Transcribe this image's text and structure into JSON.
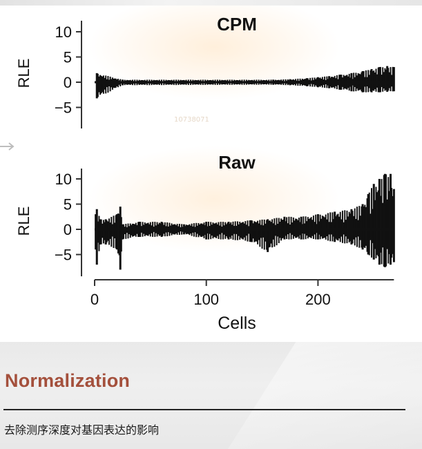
{
  "figure": {
    "watermark": "10738071",
    "chart_data": [
      {
        "type": "bar",
        "title": "CPM",
        "ylabel": "RLE",
        "xlabel": "",
        "ylim": [
          -8.5,
          12
        ],
        "yticks": [
          10,
          5,
          0,
          -5
        ],
        "xlim": [
          -5,
          270
        ],
        "series": [
          {
            "x": [
              2,
              25,
              160,
              175,
              190,
              200,
              210,
              220,
              230,
              240,
              248,
              255,
              262,
              268
            ],
            "high": [
              1.8,
              0.5,
              0.5,
              0.6,
              0.8,
              1.0,
              1.2,
              1.5,
              1.8,
              2.2,
              2.6,
              3.0,
              3.2,
              3.0
            ],
            "low": [
              -3.2,
              -0.6,
              -0.5,
              -0.6,
              -0.8,
              -1.0,
              -1.2,
              -1.5,
              -1.8,
              -2.0,
              -2.0,
              -2.0,
              -1.9,
              -1.8
            ]
          }
        ]
      },
      {
        "type": "bar",
        "title": "Raw",
        "ylabel": "RLE",
        "xlabel": "Cells",
        "ylim": [
          -8.5,
          12
        ],
        "yticks": [
          10,
          5,
          0,
          -5
        ],
        "xlim": [
          -5,
          270
        ],
        "xticks": [
          0,
          100,
          200
        ],
        "series": [
          {
            "x": [
              1,
              2,
              5,
              10,
              20,
              23,
              25,
              40,
              60,
              80,
              100,
              120,
              140,
              155,
              170,
              185,
              200,
              215,
              230,
              240,
              245,
              250,
              255,
              260,
              265,
              268
            ],
            "high": [
              3,
              4,
              2,
              2,
              3,
              4.5,
              1,
              1.5,
              1.5,
              1.0,
              1.5,
              1.5,
              1.8,
              2.0,
              2.5,
              2.5,
              3.0,
              3.5,
              4.0,
              5.0,
              7.0,
              9.0,
              10.0,
              11.0,
              11.0,
              8.0
            ],
            "low": [
              -4,
              -7,
              -3,
              -3,
              -4,
              -8,
              -2,
              -1.5,
              -1.5,
              -1.0,
              -2.0,
              -2.0,
              -2.5,
              -4.5,
              -2.0,
              -2.0,
              -2.0,
              -2.5,
              -3.0,
              -4.0,
              -5.0,
              -6.0,
              -7.0,
              -7.5,
              -7.0,
              -6.5
            ]
          }
        ]
      }
    ]
  },
  "section": {
    "title": "Normalization",
    "subtitle": "去除测序深度对基因表达的影响"
  }
}
